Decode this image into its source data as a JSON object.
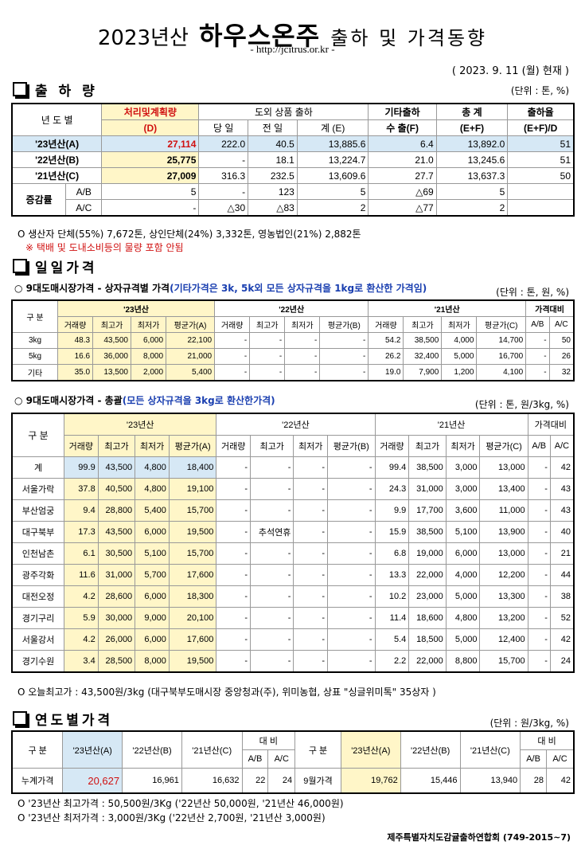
{
  "header": {
    "title_pre": "2023년산",
    "title_main": "하우스온주",
    "title_post": "출하 및 가격동향",
    "url": "- http://jcitrus.or.kr -",
    "date": "( 2023. 9. 11 (월) 현재 )"
  },
  "shipment": {
    "section_title": "출 하 량",
    "unit": "(단위 : 톤, %)",
    "hdr": {
      "year": "년 도 별",
      "plan": "처리및계획량",
      "plan_sub": "(D)",
      "domestic": "도외 상품 출하",
      "today": "당 일",
      "prev": "전 일",
      "sum": "계 (E)",
      "other": "기타출하",
      "export": "수 출(F)",
      "total": "총 계",
      "total_sub": "(E+F)",
      "rate": "출하율",
      "rate_sub": "(E+F)/D"
    },
    "rows": [
      [
        "'23년산(A)",
        "27,114",
        "222.0",
        "40.5",
        "13,885.6",
        "6.4",
        "13,892.0",
        "51"
      ],
      [
        "'22년산(B)",
        "25,775",
        "-",
        "18.1",
        "13,224.7",
        "21.0",
        "13,245.6",
        "51"
      ],
      [
        "'21년산(C)",
        "27,009",
        "316.3",
        "232.5",
        "13,609.6",
        "27.7",
        "13,637.3",
        "50"
      ]
    ],
    "diff_label": "증감률",
    "diff_unit": "(%)",
    "diff_rows": [
      [
        "A/B",
        "5",
        "-",
        "123",
        "5",
        "△69",
        "5",
        ""
      ],
      [
        "A/C",
        "-",
        "△30",
        "△83",
        "2",
        "△77",
        "2",
        ""
      ]
    ],
    "note1": "생산자 단체(55%) 7,672톤, 상인단체(24%) 3,332톤, 영농법인(21%) 2,882톤",
    "note2": "※ 택배 및 도내소비등의 물량 포함 안됨"
  },
  "daily": {
    "section_title": "일일가격",
    "sub1": {
      "title": "9대도매시장가격 - 상자규격별 가격",
      "title_blue": "(기타가격은 3k, 5k외 모든 상자규격을 1kg로 환산한 가격임)",
      "unit": "(단위 : 톤, 원, %)"
    },
    "sub2": {
      "title": "9대도매시장가격 - 총괄",
      "title_blue": "(모든 상자규격을 3kg로 환산한가격)",
      "unit": "(단위 : 톤, 원/3kg, %)"
    },
    "hdr": {
      "gubun": "구 분",
      "y23": "'23년산",
      "y22": "'22년산",
      "y21": "'21년산",
      "compare": "가격대비",
      "vol": "거래량",
      "max": "최고가",
      "min": "최저가",
      "avgA": "평균가(A)",
      "avgB": "평균가(B)",
      "avgC": "평균가(C)",
      "ab": "A/B",
      "ac": "A/C"
    },
    "box_rows": [
      [
        "3kg",
        "48.3",
        "43,500",
        "6,000",
        "22,100",
        "-",
        "-",
        "-",
        "-",
        "54.2",
        "38,500",
        "4,000",
        "14,700",
        "-",
        "50"
      ],
      [
        "5kg",
        "16.6",
        "36,000",
        "8,000",
        "21,000",
        "-",
        "-",
        "-",
        "-",
        "26.2",
        "32,400",
        "5,000",
        "16,700",
        "-",
        "26"
      ],
      [
        "기타",
        "35.0",
        "13,500",
        "2,000",
        "5,400",
        "-",
        "-",
        "-",
        "-",
        "19.0",
        "7,900",
        "1,200",
        "4,100",
        "-",
        "32"
      ]
    ],
    "total_rows": [
      [
        "계",
        "99.9",
        "43,500",
        "4,800",
        "18,400",
        "-",
        "-",
        "-",
        "-",
        "99.4",
        "38,500",
        "3,000",
        "13,000",
        "-",
        "42"
      ],
      [
        "서울가락",
        "37.8",
        "40,500",
        "4,800",
        "19,100",
        "-",
        "-",
        "-",
        "-",
        "24.3",
        "31,000",
        "3,000",
        "13,400",
        "-",
        "43"
      ],
      [
        "부산엄궁",
        "9.4",
        "28,800",
        "5,400",
        "15,700",
        "-",
        "-",
        "-",
        "-",
        "9.9",
        "17,700",
        "3,600",
        "11,000",
        "-",
        "43"
      ],
      [
        "대구북부",
        "17.3",
        "43,500",
        "6,000",
        "19,500",
        "-",
        "추석연휴",
        "-",
        "-",
        "15.9",
        "38,500",
        "5,100",
        "13,900",
        "-",
        "40"
      ],
      [
        "인천남촌",
        "6.1",
        "30,500",
        "5,100",
        "15,700",
        "-",
        "-",
        "-",
        "-",
        "6.8",
        "19,000",
        "6,000",
        "13,000",
        "-",
        "21"
      ],
      [
        "광주각화",
        "11.6",
        "31,000",
        "5,700",
        "17,600",
        "-",
        "-",
        "-",
        "-",
        "13.3",
        "22,000",
        "4,000",
        "12,200",
        "-",
        "44"
      ],
      [
        "대전오정",
        "4.2",
        "28,600",
        "6,000",
        "18,300",
        "-",
        "-",
        "-",
        "-",
        "10.2",
        "23,000",
        "5,000",
        "13,300",
        "-",
        "38"
      ],
      [
        "경기구리",
        "5.9",
        "30,000",
        "9,000",
        "20,100",
        "-",
        "-",
        "-",
        "-",
        "11.4",
        "18,600",
        "4,800",
        "13,200",
        "-",
        "52"
      ],
      [
        "서울강서",
        "4.2",
        "26,000",
        "6,000",
        "17,600",
        "-",
        "-",
        "-",
        "-",
        "5.4",
        "18,500",
        "5,000",
        "12,400",
        "-",
        "42"
      ],
      [
        "경기수원",
        "3.4",
        "28,500",
        "8,000",
        "19,500",
        "-",
        "-",
        "-",
        "-",
        "2.2",
        "22,000",
        "8,800",
        "15,700",
        "-",
        "24"
      ]
    ],
    "note": "오늘최고가 : 43,500원/3kg (대구북부도매시장 중앙청과(주), 위미농협, 상표 \"싱글위미톡\" 35상자 )"
  },
  "yearly": {
    "section_title": "연도별가격",
    "unit": "(단위 : 원/3kg, %)",
    "hdr": {
      "gubun": "구 분",
      "y23": "'23년산(A)",
      "y22": "'22년산(B)",
      "y21": "'21년산(C)",
      "compare": "대 비",
      "ab": "A/B",
      "ac": "A/C"
    },
    "left": {
      "label": "누계가격",
      "a": "20,627",
      "b": "16,961",
      "c": "16,632",
      "ab": "22",
      "ac": "24"
    },
    "right": {
      "label": "9월가격",
      "a": "19,762",
      "b": "15,446",
      "c": "13,940",
      "ab": "28",
      "ac": "42"
    },
    "note1": "'23년산 최고가격 : 50,500원/3Kg ('22년산 50,000원, '21년산 46,000원)",
    "note2": "'23년산 최저가격 :  3,000원/3Kg ('22년산  2,700원, '21년산  3,000원)"
  },
  "footer": "제주특별자치도감귤출하연합회 (749-2015~7)"
}
